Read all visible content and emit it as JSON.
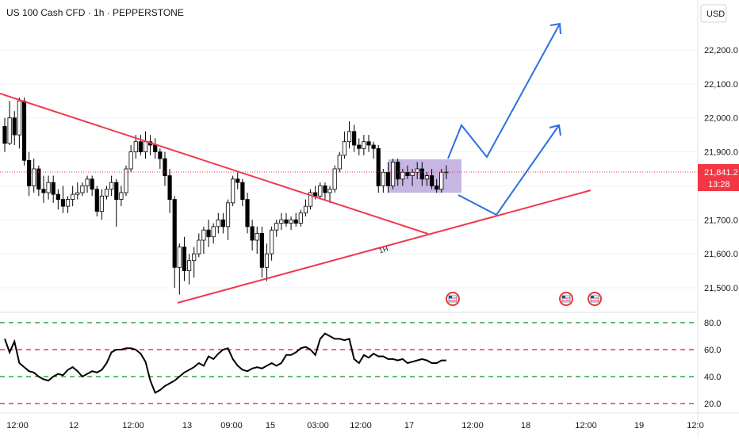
{
  "title": "US 100 Cash CFD · 1h · PEPPERSTONE",
  "currency": "USD",
  "colors": {
    "up": "#ffffff",
    "down": "#000000",
    "wick": "#000000",
    "trendline": "#f0394f",
    "projection": "#2b6fe0",
    "range_fill": "#b39ddb",
    "price_tag": "#f23645",
    "rsi_line": "#000000",
    "rsi_green": "#2eaa3b",
    "rsi_red": "#f0394f",
    "axis_text": "#131722",
    "grid": "#f0f3fa"
  },
  "price_axis": {
    "ticks": [
      "22,200.0",
      "22,100.0",
      "22,000.0",
      "21,900.0",
      "21,700.0",
      "21,600.0",
      "21,500.0"
    ]
  },
  "current_price": {
    "value": "21,841.2",
    "countdown": "13:28"
  },
  "trendline_label": "1H",
  "rsi_axis": {
    "ticks": [
      "80.0",
      "60.0",
      "40.0",
      "20.0"
    ]
  },
  "time_axis": {
    "ticks": [
      "12:00",
      "12",
      "12:00",
      "13",
      "09:00",
      "15",
      "03:00",
      "12:00",
      "17",
      "12:00",
      "18",
      "12:00",
      "19",
      "12:0"
    ]
  },
  "event_icons": [
    "us-flag-icon",
    "us-flag-icon",
    "us-flag-icon"
  ],
  "chart_data": {
    "type": "candlestick",
    "title": "US 100 Cash CFD · 1h · PEPPERSTONE",
    "y_unit": "USD",
    "ylim": [
      21450,
      22330
    ],
    "x_labels": [
      "12:00",
      "12",
      "12:00",
      "13",
      "09:00",
      "15",
      "03:00",
      "12:00",
      "17",
      "12:00",
      "18",
      "12:00",
      "19",
      "12:0"
    ],
    "series": [
      {
        "name": "price",
        "candles": [
          [
            21975,
            22000,
            21900,
            21925
          ],
          [
            21925,
            22050,
            21920,
            22000
          ],
          [
            22000,
            22020,
            21920,
            21950
          ],
          [
            21950,
            22060,
            21910,
            22050
          ],
          [
            22050,
            22060,
            21860,
            21875
          ],
          [
            21875,
            21900,
            21770,
            21800
          ],
          [
            21800,
            21880,
            21780,
            21850
          ],
          [
            21850,
            21860,
            21770,
            21790
          ],
          [
            21790,
            21830,
            21750,
            21780
          ],
          [
            21780,
            21830,
            21760,
            21810
          ],
          [
            21810,
            21830,
            21750,
            21775
          ],
          [
            21775,
            21790,
            21730,
            21760
          ],
          [
            21760,
            21800,
            21720,
            21740
          ],
          [
            21740,
            21770,
            21720,
            21760
          ],
          [
            21760,
            21800,
            21740,
            21775
          ],
          [
            21775,
            21810,
            21760,
            21780
          ],
          [
            21780,
            21810,
            21770,
            21800
          ],
          [
            21800,
            21830,
            21780,
            21820
          ],
          [
            21820,
            21830,
            21770,
            21790
          ],
          [
            21790,
            21800,
            21710,
            21725
          ],
          [
            21725,
            21790,
            21700,
            21770
          ],
          [
            21770,
            21800,
            21760,
            21790
          ],
          [
            21790,
            21830,
            21770,
            21810
          ],
          [
            21810,
            21820,
            21680,
            21760
          ],
          [
            21760,
            21800,
            21740,
            21780
          ],
          [
            21780,
            21860,
            21770,
            21850
          ],
          [
            21850,
            21920,
            21840,
            21900
          ],
          [
            21900,
            21950,
            21880,
            21930
          ],
          [
            21930,
            21950,
            21890,
            21900
          ],
          [
            21900,
            21960,
            21880,
            21930
          ],
          [
            21930,
            21950,
            21890,
            21920
          ],
          [
            21920,
            21940,
            21880,
            21900
          ],
          [
            21900,
            21910,
            21850,
            21880
          ],
          [
            21880,
            21900,
            21800,
            21830
          ],
          [
            21830,
            21850,
            21720,
            21760
          ],
          [
            21760,
            21770,
            21500,
            21560
          ],
          [
            21560,
            21630,
            21480,
            21620
          ],
          [
            21620,
            21650,
            21520,
            21550
          ],
          [
            21550,
            21600,
            21510,
            21580
          ],
          [
            21580,
            21620,
            21530,
            21600
          ],
          [
            21600,
            21660,
            21590,
            21640
          ],
          [
            21640,
            21680,
            21600,
            21670
          ],
          [
            21670,
            21700,
            21620,
            21650
          ],
          [
            21650,
            21690,
            21630,
            21680
          ],
          [
            21680,
            21720,
            21660,
            21700
          ],
          [
            21700,
            21720,
            21660,
            21680
          ],
          [
            21680,
            21760,
            21640,
            21750
          ],
          [
            21750,
            21830,
            21740,
            21820
          ],
          [
            21820,
            21840,
            21790,
            21810
          ],
          [
            21810,
            21820,
            21740,
            21760
          ],
          [
            21760,
            21780,
            21660,
            21680
          ],
          [
            21680,
            21700,
            21610,
            21640
          ],
          [
            21640,
            21680,
            21600,
            21660
          ],
          [
            21660,
            21680,
            21530,
            21560
          ],
          [
            21560,
            21630,
            21520,
            21600
          ],
          [
            21600,
            21680,
            21580,
            21670
          ],
          [
            21670,
            21700,
            21650,
            21690
          ],
          [
            21690,
            21720,
            21670,
            21700
          ],
          [
            21700,
            21720,
            21680,
            21690
          ],
          [
            21690,
            21710,
            21670,
            21700
          ],
          [
            21700,
            21720,
            21680,
            21690
          ],
          [
            21690,
            21730,
            21680,
            21720
          ],
          [
            21720,
            21760,
            21710,
            21740
          ],
          [
            21740,
            21790,
            21730,
            21780
          ],
          [
            21780,
            21800,
            21760,
            21770
          ],
          [
            21770,
            21810,
            21760,
            21800
          ],
          [
            21800,
            21810,
            21760,
            21780
          ],
          [
            21780,
            21800,
            21750,
            21790
          ],
          [
            21790,
            21860,
            21780,
            21850
          ],
          [
            21850,
            21900,
            21840,
            21890
          ],
          [
            21890,
            21960,
            21880,
            21930
          ],
          [
            21930,
            21990,
            21910,
            21960
          ],
          [
            21960,
            21980,
            21900,
            21920
          ],
          [
            21920,
            21940,
            21890,
            21910
          ],
          [
            21910,
            21950,
            21890,
            21930
          ],
          [
            21930,
            21950,
            21900,
            21920
          ],
          [
            21920,
            21930,
            21880,
            21910
          ],
          [
            21910,
            21920,
            21780,
            21800
          ],
          [
            21800,
            21850,
            21780,
            21840
          ],
          [
            21840,
            21870,
            21780,
            21800
          ],
          [
            21800,
            21880,
            21790,
            21870
          ],
          [
            21870,
            21880,
            21800,
            21820
          ],
          [
            21820,
            21850,
            21800,
            21840
          ],
          [
            21840,
            21860,
            21820,
            21830
          ],
          [
            21830,
            21850,
            21800,
            21840
          ],
          [
            21840,
            21870,
            21820,
            21850
          ],
          [
            21850,
            21870,
            21800,
            21820
          ],
          [
            21820,
            21840,
            21800,
            21830
          ],
          [
            21830,
            21850,
            21790,
            21800
          ],
          [
            21800,
            21820,
            21780,
            21790
          ],
          [
            21790,
            21850,
            21780,
            21840
          ],
          [
            21840,
            21860,
            21820,
            21841
          ]
        ]
      },
      {
        "name": "RSI",
        "values": [
          68,
          58,
          66,
          50,
          47,
          44,
          43,
          40,
          38,
          37,
          40,
          42,
          41,
          45,
          47,
          44,
          40,
          42,
          44,
          43,
          45,
          50,
          58,
          60,
          60,
          61,
          61,
          60,
          57,
          51,
          37,
          28,
          30,
          33,
          35,
          37,
          40,
          43,
          45,
          47,
          50,
          48,
          55,
          53,
          57,
          60,
          61,
          53,
          48,
          45,
          44,
          46,
          47,
          46,
          48,
          50,
          48,
          50,
          56,
          56,
          58,
          61,
          62,
          60,
          56,
          68,
          72,
          70,
          68,
          68,
          67,
          68,
          53,
          50,
          56,
          54,
          57,
          55,
          55,
          53,
          53,
          52,
          53,
          50,
          51,
          52,
          53,
          52,
          50,
          50,
          52,
          52
        ]
      }
    ],
    "rsi_levels": [
      80,
      60,
      40,
      20
    ]
  }
}
